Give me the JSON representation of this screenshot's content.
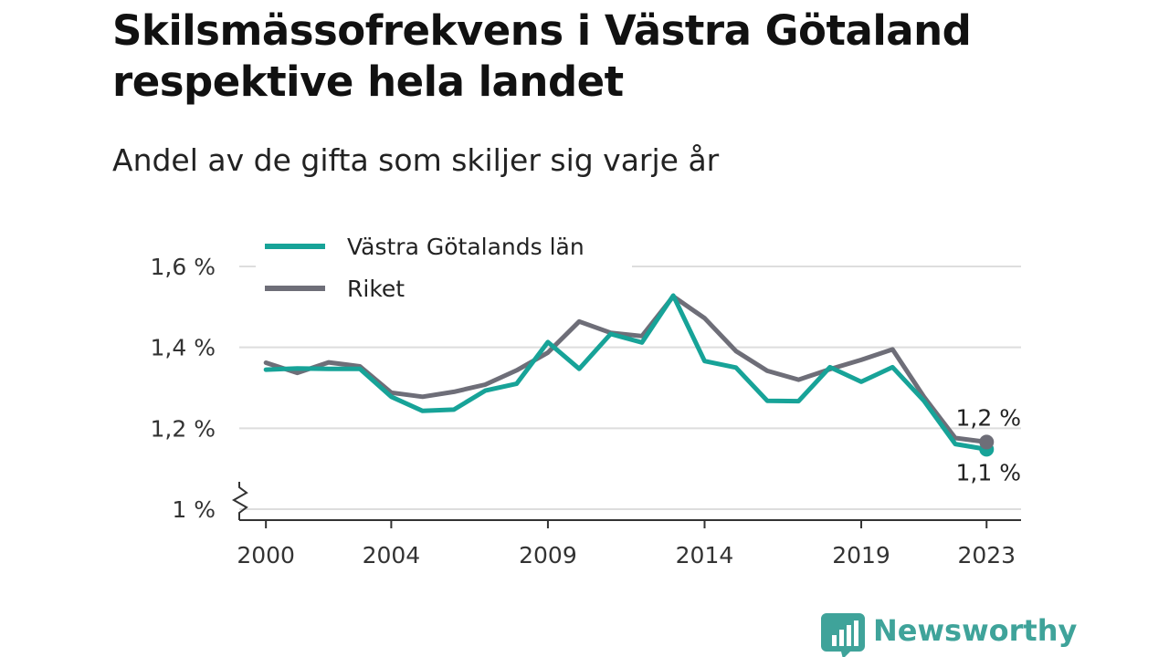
{
  "header": {
    "title": "Skilsmässofrekvens i Västra Götaland respektive hela landet",
    "subtitle": "Andel av de gifta som skiljer sig varje år"
  },
  "brand": {
    "name": "Newsworthy",
    "icon": "newsworthy-chart-icon",
    "color": "#3fa39a"
  },
  "colors": {
    "vg": "#17a398",
    "riket": "#6e6e78",
    "grid": "#dddddd",
    "axis": "#333333"
  },
  "chart_data": {
    "type": "line",
    "title": "Skilsmässofrekvens i Västra Götaland respektive hela landet",
    "subtitle": "Andel av de gifta som skiljer sig varje år",
    "xlabel": "",
    "ylabel": "",
    "x": [
      2000,
      2001,
      2002,
      2003,
      2004,
      2005,
      2006,
      2007,
      2008,
      2009,
      2010,
      2011,
      2012,
      2013,
      2014,
      2015,
      2016,
      2017,
      2018,
      2019,
      2020,
      2021,
      2022,
      2023
    ],
    "xticks": [
      2000,
      2004,
      2009,
      2014,
      2019,
      2023
    ],
    "xtick_labels": [
      "2000",
      "2004",
      "2009",
      "2014",
      "2019",
      "2023"
    ],
    "yticks": [
      1.0,
      1.2,
      1.4,
      1.6
    ],
    "ytick_labels": [
      "1 %",
      "1,2 %",
      "1,4 %",
      "1,6 %"
    ],
    "ylim": [
      0.97,
      1.6
    ],
    "y_axis_break": true,
    "grid": true,
    "legend_position": "top-left",
    "series": [
      {
        "name": "Västra Götalands län",
        "color": "#17a398",
        "values": [
          1.345,
          1.348,
          1.347,
          1.347,
          1.278,
          1.243,
          1.246,
          1.293,
          1.31,
          1.413,
          1.347,
          1.433,
          1.412,
          1.528,
          1.366,
          1.35,
          1.268,
          1.267,
          1.351,
          1.315,
          1.351,
          1.268,
          1.161,
          1.148
        ],
        "end_label": "1,1 %"
      },
      {
        "name": "Riket",
        "color": "#6e6e78",
        "values": [
          1.362,
          1.337,
          1.363,
          1.353,
          1.288,
          1.278,
          1.29,
          1.308,
          1.343,
          1.387,
          1.464,
          1.436,
          1.428,
          1.526,
          1.472,
          1.391,
          1.342,
          1.32,
          1.346,
          1.369,
          1.395,
          1.278,
          1.176,
          1.166
        ],
        "end_label": "1,2 %"
      }
    ]
  }
}
